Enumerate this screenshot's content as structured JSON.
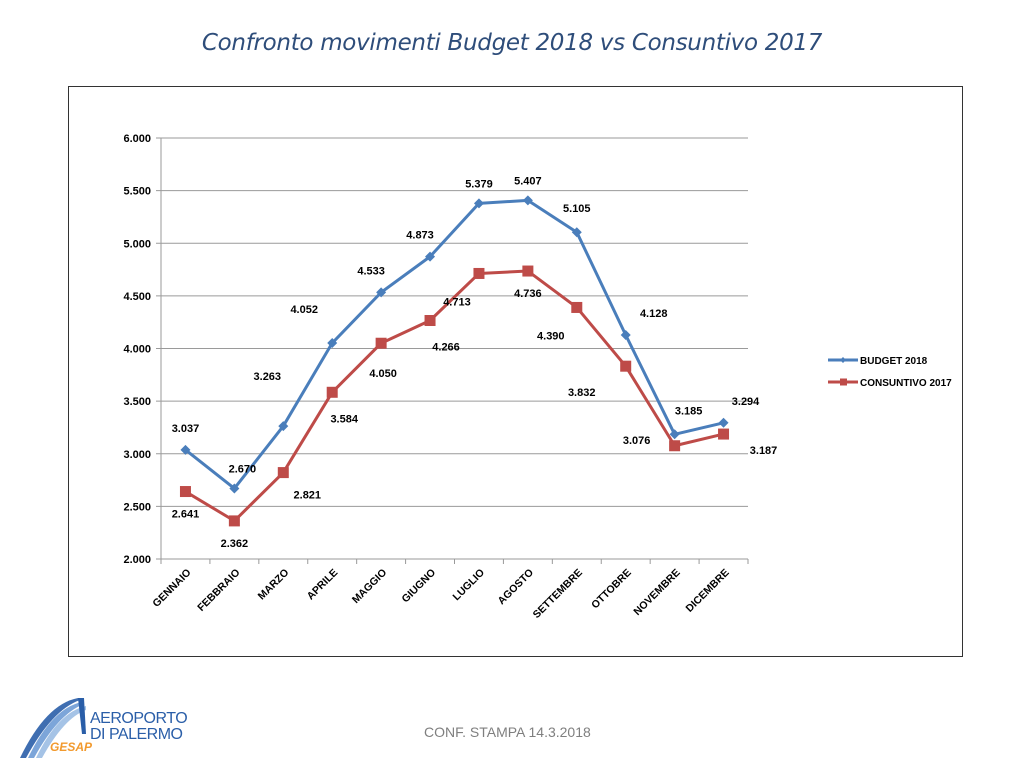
{
  "page": {
    "title": "Confronto movimenti Budget 2018 vs Consuntivo 2017",
    "footer": "CONF. STAMPA 14.3.2018",
    "logo": {
      "line1": "AEROPORTO",
      "line2": "DI PALERMO",
      "brand": "GESAP"
    }
  },
  "chart_data": {
    "type": "line",
    "title": "Confronto movimenti Budget 2018 vs Consuntivo 2017",
    "xlabel": "",
    "ylabel": "",
    "categories": [
      "GENNAIO",
      "FEBBRAIO",
      "MARZO",
      "APRILE",
      "MAGGIO",
      "GIUGNO",
      "LUGLIO",
      "AGOSTO",
      "SETTEMBRE",
      "OTTOBRE",
      "NOVEMBRE",
      "DICEMBRE"
    ],
    "ylim": [
      2000,
      6000
    ],
    "yticks": [
      2000,
      2500,
      3000,
      3500,
      4000,
      4500,
      5000,
      5500,
      6000
    ],
    "ytick_labels": [
      "2.000",
      "2.500",
      "3.000",
      "3.500",
      "4.000",
      "4.500",
      "5.000",
      "5.500",
      "6.000"
    ],
    "grid": true,
    "legend_position": "right",
    "series": [
      {
        "name": "BUDGET 2018",
        "color": "#4a7ebb",
        "marker": "diamond",
        "values": [
          3037,
          2670,
          3263,
          4052,
          4533,
          4873,
          5379,
          5407,
          5105,
          4128,
          3185,
          3294
        ],
        "labels": [
          "3.037",
          "2.670",
          "3.263",
          "4.052",
          "4.533",
          "4.873",
          "5.379",
          "5.407",
          "5.105",
          "4.128",
          "3.185",
          "3.294"
        ]
      },
      {
        "name": "CONSUNTIVO 2017",
        "color": "#be4b48",
        "marker": "square",
        "values": [
          2641,
          2362,
          2821,
          3584,
          4050,
          4266,
          4713,
          4736,
          4390,
          3832,
          3076,
          3187
        ],
        "labels": [
          "2.641",
          "2.362",
          "2.821",
          "3.584",
          "4.050",
          "4.266",
          "4.713",
          "4.736",
          "4.390",
          "3.832",
          "3.076",
          "3.187"
        ]
      }
    ]
  }
}
